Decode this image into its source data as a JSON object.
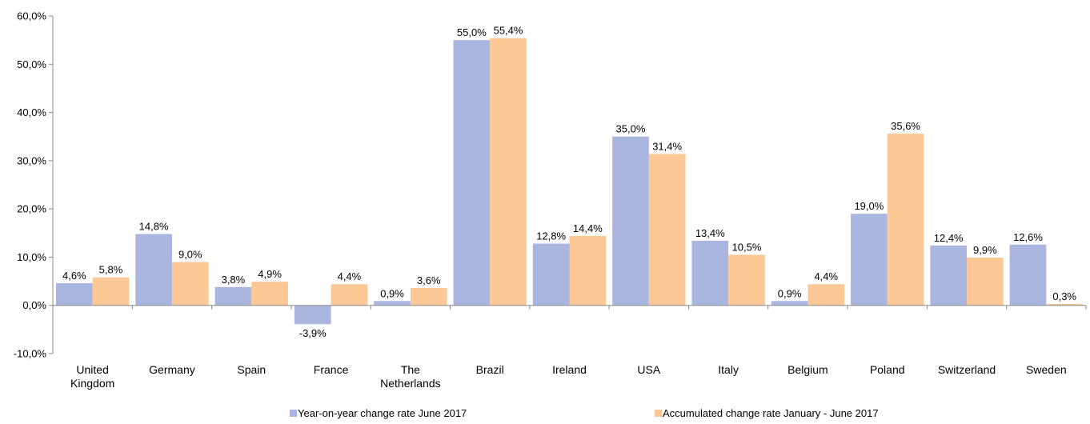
{
  "chart_data": {
    "type": "bar",
    "categories": [
      "United Kingdom",
      "Germany",
      "Spain",
      "France",
      "The Netherlands",
      "Brazil",
      "Ireland",
      "USA",
      "Italy",
      "Belgium",
      "Poland",
      "Switzerland",
      "Sweden"
    ],
    "category_lines": [
      [
        "United",
        "Kingdom"
      ],
      [
        "Germany"
      ],
      [
        "Spain"
      ],
      [
        "France"
      ],
      [
        "The",
        "Netherlands"
      ],
      [
        "Brazil"
      ],
      [
        "Ireland"
      ],
      [
        "USA"
      ],
      [
        "Italy"
      ],
      [
        "Belgium"
      ],
      [
        "Poland"
      ],
      [
        "Switzerland"
      ],
      [
        "Sweden"
      ]
    ],
    "series": [
      {
        "name": "Year-on-year change rate June 2017",
        "color": "#aab6e0",
        "values": [
          4.6,
          14.8,
          3.8,
          -3.9,
          0.9,
          55.0,
          12.8,
          35.0,
          13.4,
          0.9,
          19.0,
          12.4,
          12.6
        ],
        "labels": [
          "4,6%",
          "14,8%",
          "3,8%",
          "-3,9%",
          "0,9%",
          "55,0%",
          "12,8%",
          "35,0%",
          "13,4%",
          "0,9%",
          "19,0%",
          "12,4%",
          "12,6%"
        ]
      },
      {
        "name": "Accumulated change rate January - June 2017",
        "color": "#fcc996",
        "values": [
          5.8,
          9.0,
          4.9,
          4.4,
          3.6,
          55.4,
          14.4,
          31.4,
          10.5,
          4.4,
          35.6,
          9.9,
          0.3
        ],
        "labels": [
          "5,8%",
          "9,0%",
          "4,9%",
          "4,4%",
          "3,6%",
          "55,4%",
          "14,4%",
          "31,4%",
          "10,5%",
          "4,4%",
          "35,6%",
          "9,9%",
          "0,3%"
        ]
      }
    ],
    "ylim": [
      -10,
      60
    ],
    "yticks": [
      -10,
      0,
      10,
      20,
      30,
      40,
      50,
      60
    ],
    "ytick_labels": [
      "-10,0%",
      "0,0%",
      "10,0%",
      "20,0%",
      "30,0%",
      "40,0%",
      "50,0%",
      "60,0%"
    ],
    "title": "",
    "xlabel": "",
    "ylabel": "",
    "grid": false,
    "legend_position": "bottom"
  }
}
